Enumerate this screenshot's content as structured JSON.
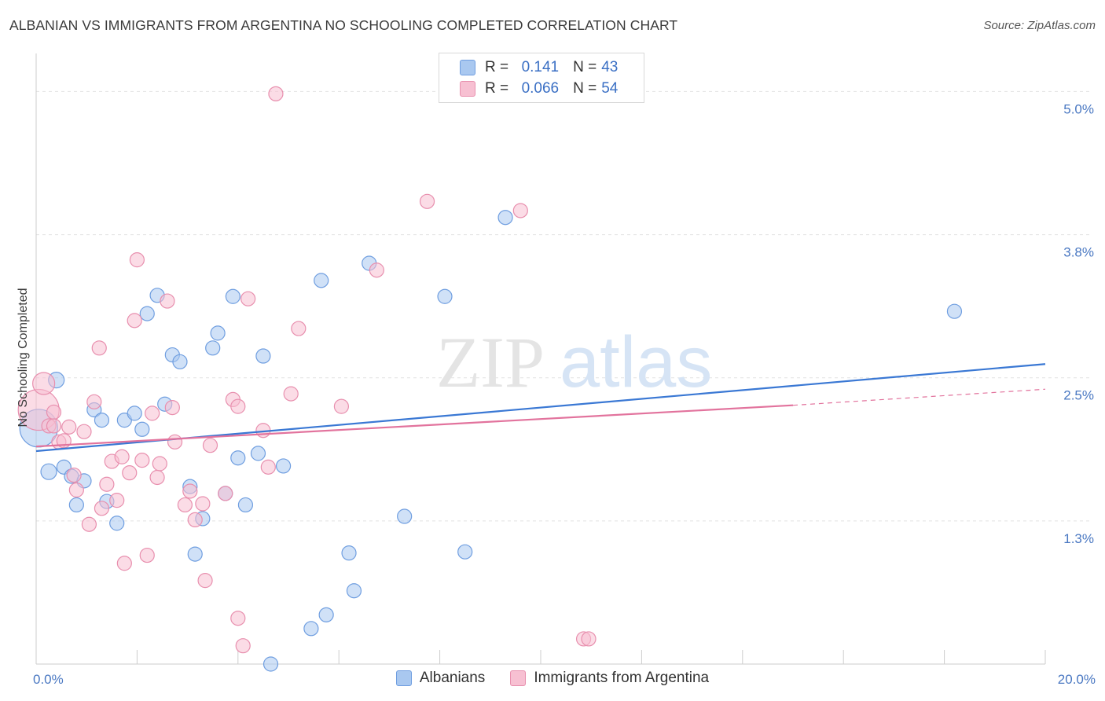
{
  "title": "ALBANIAN VS IMMIGRANTS FROM ARGENTINA NO SCHOOLING COMPLETED CORRELATION CHART",
  "source": "Source: ZipAtlas.com",
  "watermark": {
    "zip": "ZIP",
    "atlas": "atlas"
  },
  "legend": {
    "rows": [
      {
        "r_label": "R =",
        "r_value": "0.141",
        "n_label": "N =",
        "n_value": "43",
        "color": "#a9c8f0",
        "border": "#6f9ee0"
      },
      {
        "r_label": "R =",
        "r_value": "0.066",
        "n_label": "N =",
        "n_value": "54",
        "color": "#f7c0d2",
        "border": "#e88fae"
      }
    ]
  },
  "bottom_legend": [
    {
      "label": "Albanians",
      "color": "#a9c8f0",
      "border": "#6f9ee0"
    },
    {
      "label": "Immigrants from Argentina",
      "color": "#f7c0d2",
      "border": "#e88fae"
    }
  ],
  "chart_data": {
    "type": "scatter",
    "title": "ALBANIAN VS IMMIGRANTS FROM ARGENTINA NO SCHOOLING COMPLETED CORRELATION CHART",
    "xlabel": "",
    "ylabel": "No Schooling Completed",
    "xlim": [
      0,
      20
    ],
    "ylim": [
      0,
      5.0
    ],
    "x_tick_labels": [
      {
        "value": 0,
        "label": "0.0%"
      },
      {
        "value": 20,
        "label": "20.0%"
      }
    ],
    "y_tick_labels": [
      {
        "value": 1.25,
        "label": "1.3%"
      },
      {
        "value": 2.5,
        "label": "2.5%"
      },
      {
        "value": 3.75,
        "label": "3.8%"
      },
      {
        "value": 5.0,
        "label": "5.0%"
      }
    ],
    "grid": true,
    "series": [
      {
        "name": "Albanians",
        "color": "#6f9ee0",
        "fill": "#a9c8f0",
        "trend": {
          "x": [
            0,
            20
          ],
          "y": [
            1.86,
            2.62
          ]
        },
        "points": [
          [
            0.05,
            2.06,
            24
          ],
          [
            0.25,
            1.68,
            10
          ],
          [
            0.4,
            2.48,
            10
          ],
          [
            0.55,
            1.72,
            9
          ],
          [
            0.7,
            1.64,
            9
          ],
          [
            0.8,
            1.39,
            9
          ],
          [
            0.95,
            1.6,
            9
          ],
          [
            1.15,
            2.22,
            9
          ],
          [
            1.3,
            2.13,
            9
          ],
          [
            1.4,
            1.42,
            9
          ],
          [
            1.6,
            1.23,
            9
          ],
          [
            1.75,
            2.13,
            9
          ],
          [
            1.95,
            2.19,
            9
          ],
          [
            2.1,
            2.05,
            9
          ],
          [
            2.2,
            3.06,
            9
          ],
          [
            2.4,
            3.22,
            9
          ],
          [
            2.55,
            2.27,
            9
          ],
          [
            2.7,
            2.7,
            9
          ],
          [
            2.85,
            2.64,
            9
          ],
          [
            3.05,
            1.55,
            9
          ],
          [
            3.15,
            0.96,
            9
          ],
          [
            3.3,
            1.27,
            9
          ],
          [
            3.5,
            2.76,
            9
          ],
          [
            3.6,
            2.89,
            9
          ],
          [
            3.75,
            1.49,
            9
          ],
          [
            3.9,
            3.21,
            9
          ],
          [
            4.0,
            1.8,
            9
          ],
          [
            4.15,
            1.39,
            9
          ],
          [
            4.4,
            1.84,
            9
          ],
          [
            4.5,
            2.69,
            9
          ],
          [
            4.65,
            0.0,
            9
          ],
          [
            4.9,
            1.73,
            9
          ],
          [
            5.45,
            0.31,
            9
          ],
          [
            5.75,
            0.43,
            9
          ],
          [
            5.65,
            3.35,
            9
          ],
          [
            6.2,
            0.97,
            9
          ],
          [
            6.3,
            0.64,
            9
          ],
          [
            6.6,
            3.5,
            9
          ],
          [
            7.3,
            1.29,
            9
          ],
          [
            8.1,
            3.21,
            9
          ],
          [
            8.5,
            0.98,
            9
          ],
          [
            9.3,
            3.9,
            9
          ],
          [
            18.2,
            3.08,
            9
          ]
        ]
      },
      {
        "name": "Immigrants from Argentina",
        "color": "#e88fae",
        "fill": "#f7c0d2",
        "trend": {
          "x": [
            0,
            15
          ],
          "y": [
            1.9,
            2.26
          ]
        },
        "trend_dashed": {
          "x": [
            15,
            20
          ],
          "y": [
            2.26,
            2.4
          ]
        },
        "points": [
          [
            0.05,
            2.22,
            26
          ],
          [
            0.15,
            2.45,
            14
          ],
          [
            0.25,
            2.08,
            9
          ],
          [
            0.35,
            2.2,
            9
          ],
          [
            0.45,
            1.94,
            9
          ],
          [
            0.55,
            1.95,
            9
          ],
          [
            0.65,
            2.07,
            9
          ],
          [
            0.75,
            1.65,
            9
          ],
          [
            0.8,
            1.52,
            9
          ],
          [
            0.95,
            2.03,
            9
          ],
          [
            1.05,
            1.22,
            9
          ],
          [
            1.15,
            2.29,
            9
          ],
          [
            1.25,
            2.76,
            9
          ],
          [
            1.3,
            1.36,
            9
          ],
          [
            1.4,
            1.57,
            9
          ],
          [
            1.5,
            1.77,
            9
          ],
          [
            1.6,
            1.43,
            9
          ],
          [
            1.7,
            1.81,
            9
          ],
          [
            1.75,
            0.88,
            9
          ],
          [
            1.85,
            1.67,
            9
          ],
          [
            1.95,
            3.0,
            9
          ],
          [
            2.0,
            3.53,
            9
          ],
          [
            2.1,
            1.78,
            9
          ],
          [
            2.2,
            0.95,
            9
          ],
          [
            2.3,
            2.19,
            9
          ],
          [
            2.4,
            1.63,
            9
          ],
          [
            2.45,
            1.75,
            9
          ],
          [
            2.6,
            3.17,
            9
          ],
          [
            2.7,
            2.24,
            9
          ],
          [
            2.75,
            1.94,
            9
          ],
          [
            2.95,
            1.39,
            9
          ],
          [
            3.05,
            1.51,
            9
          ],
          [
            3.15,
            1.26,
            9
          ],
          [
            3.3,
            1.4,
            9
          ],
          [
            3.35,
            0.73,
            9
          ],
          [
            3.45,
            1.91,
            9
          ],
          [
            3.75,
            1.49,
            9
          ],
          [
            3.9,
            2.31,
            9
          ],
          [
            4.0,
            2.25,
            9
          ],
          [
            4.0,
            0.4,
            9
          ],
          [
            4.1,
            0.16,
            9
          ],
          [
            4.2,
            3.19,
            9
          ],
          [
            4.5,
            2.04,
            9
          ],
          [
            4.6,
            1.72,
            9
          ],
          [
            4.75,
            4.98,
            9
          ],
          [
            5.05,
            2.36,
            9
          ],
          [
            5.2,
            2.93,
            9
          ],
          [
            6.05,
            2.25,
            9
          ],
          [
            7.75,
            4.04,
            9
          ],
          [
            6.75,
            3.44,
            9
          ],
          [
            9.6,
            3.96,
            9
          ],
          [
            10.85,
            0.22,
            9
          ],
          [
            10.95,
            0.22,
            9
          ],
          [
            0.35,
            2.08,
            9
          ]
        ]
      }
    ]
  }
}
